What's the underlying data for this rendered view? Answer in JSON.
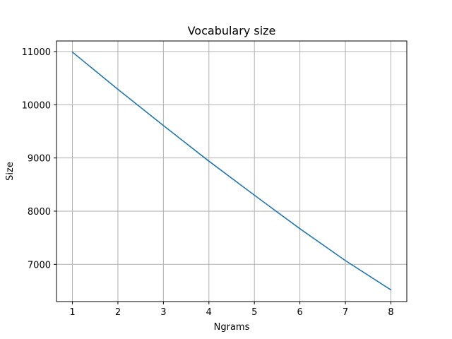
{
  "chart_data": {
    "type": "line",
    "title": "Vocabulary size",
    "xlabel": "Ngrams",
    "ylabel": "Size",
    "x": [
      1,
      2,
      3,
      4,
      5,
      6,
      7,
      8
    ],
    "series": [
      {
        "values": [
          10990,
          10290,
          9610,
          8940,
          8300,
          7670,
          7070,
          6520
        ],
        "color": "#1f77b4"
      }
    ],
    "xlim": [
      0.65,
      8.35
    ],
    "ylim": [
      6300,
      11200
    ],
    "xticks": [
      1,
      2,
      3,
      4,
      5,
      6,
      7,
      8
    ],
    "yticks": [
      7000,
      8000,
      9000,
      10000,
      11000
    ],
    "grid": true,
    "grid_color": "#b0b0b0",
    "legend": "none"
  }
}
